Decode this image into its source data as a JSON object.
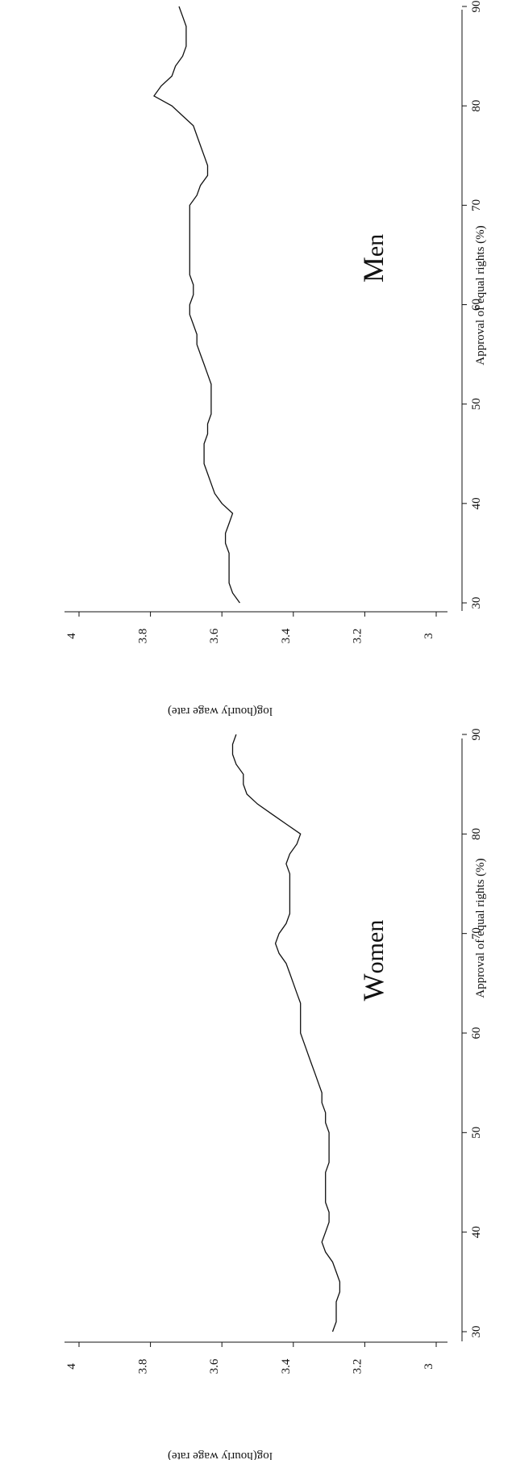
{
  "chart_data": [
    {
      "type": "line",
      "title": "Women",
      "title_lead": "W",
      "title_rest": "omen",
      "xlabel": "Approval of equal rights (%)",
      "ylabel": "log(hourly wage rate)",
      "xlim": [
        30,
        90
      ],
      "ylim": [
        3,
        4
      ],
      "x_ticks": [
        "30",
        "40",
        "50",
        "60",
        "70",
        "80",
        "90"
      ],
      "y_ticks": [
        "3",
        "3.2",
        "3.4",
        "3.6",
        "3.8",
        "4"
      ],
      "series": [
        {
          "x": [
            30,
            31,
            32,
            33,
            34,
            35,
            36,
            37,
            38,
            39,
            40,
            41,
            42,
            43,
            44,
            45,
            46,
            47,
            48,
            49,
            50,
            51,
            52,
            53,
            54,
            55,
            56,
            57,
            58,
            59,
            60,
            61,
            62,
            63,
            64,
            65,
            66,
            67,
            68,
            69,
            70,
            71,
            72,
            73,
            74,
            75,
            76,
            77,
            78,
            79,
            80,
            81,
            82,
            83,
            84,
            85,
            86,
            87,
            88,
            89,
            90
          ],
          "y": [
            3.29,
            3.28,
            3.28,
            3.28,
            3.27,
            3.27,
            3.28,
            3.29,
            3.31,
            3.32,
            3.31,
            3.3,
            3.3,
            3.31,
            3.31,
            3.31,
            3.31,
            3.3,
            3.3,
            3.3,
            3.3,
            3.31,
            3.31,
            3.32,
            3.32,
            3.33,
            3.34,
            3.35,
            3.36,
            3.37,
            3.38,
            3.38,
            3.38,
            3.38,
            3.39,
            3.4,
            3.41,
            3.42,
            3.44,
            3.45,
            3.44,
            3.42,
            3.41,
            3.41,
            3.41,
            3.41,
            3.41,
            3.42,
            3.41,
            3.39,
            3.38,
            3.42,
            3.46,
            3.5,
            3.53,
            3.54,
            3.54,
            3.56,
            3.57,
            3.57,
            3.56
          ]
        }
      ]
    },
    {
      "type": "line",
      "title": "Men",
      "title_lead": "M",
      "title_rest": "en",
      "xlabel": "Approval of equal rights (%)",
      "ylabel": "log(hourly wage rate)",
      "xlim": [
        30,
        90
      ],
      "ylim": [
        3,
        4
      ],
      "x_ticks": [
        "30",
        "40",
        "50",
        "60",
        "70",
        "80",
        "90"
      ],
      "y_ticks": [
        "3",
        "3.2",
        "3.4",
        "3.6",
        "3.8",
        "4"
      ],
      "series": [
        {
          "x": [
            30,
            31,
            32,
            33,
            34,
            35,
            36,
            37,
            38,
            39,
            40,
            41,
            42,
            43,
            44,
            45,
            46,
            47,
            48,
            49,
            50,
            51,
            52,
            53,
            54,
            55,
            56,
            57,
            58,
            59,
            60,
            61,
            62,
            63,
            64,
            65,
            66,
            67,
            68,
            69,
            70,
            71,
            72,
            73,
            74,
            75,
            76,
            77,
            78,
            79,
            80,
            81,
            82,
            83,
            84,
            85,
            86,
            87,
            88,
            89,
            90
          ],
          "y": [
            3.55,
            3.57,
            3.58,
            3.58,
            3.58,
            3.58,
            3.59,
            3.59,
            3.58,
            3.57,
            3.6,
            3.62,
            3.63,
            3.64,
            3.65,
            3.65,
            3.65,
            3.64,
            3.64,
            3.63,
            3.63,
            3.63,
            3.63,
            3.64,
            3.65,
            3.66,
            3.67,
            3.67,
            3.68,
            3.69,
            3.69,
            3.68,
            3.68,
            3.69,
            3.69,
            3.69,
            3.69,
            3.69,
            3.69,
            3.69,
            3.69,
            3.67,
            3.66,
            3.64,
            3.64,
            3.65,
            3.66,
            3.67,
            3.68,
            3.71,
            3.74,
            3.79,
            3.77,
            3.74,
            3.73,
            3.71,
            3.7,
            3.7,
            3.7,
            3.71,
            3.72
          ]
        }
      ]
    }
  ]
}
